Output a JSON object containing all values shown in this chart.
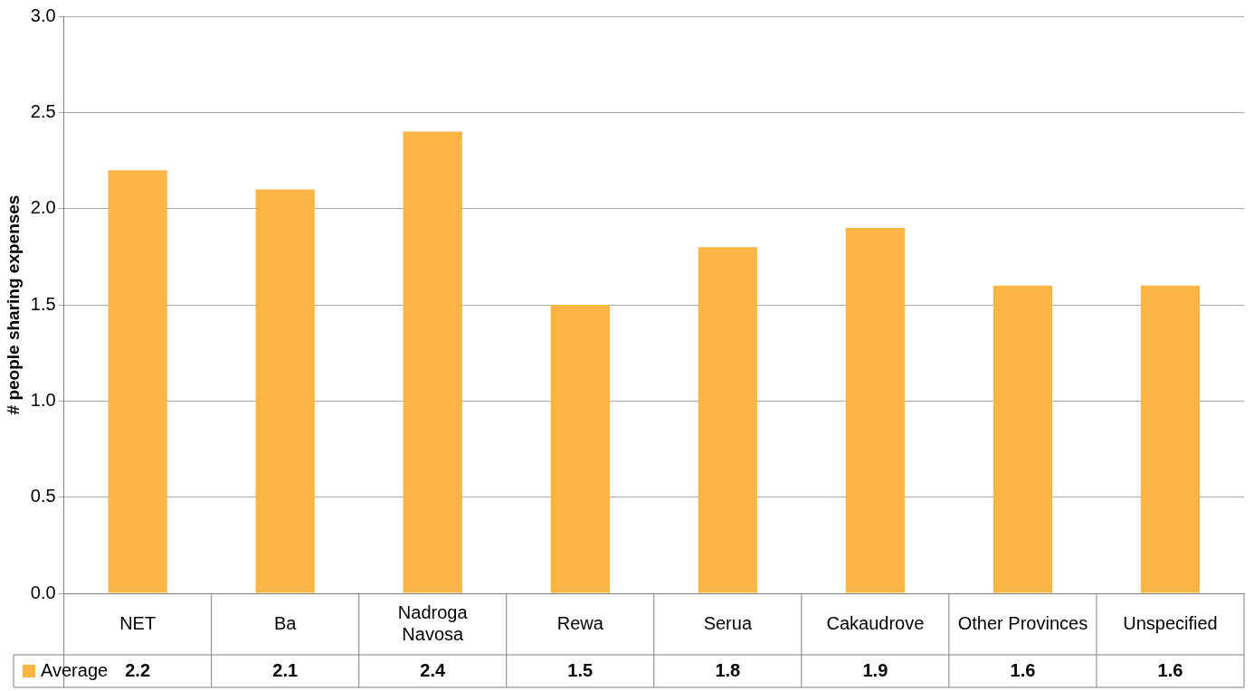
{
  "chart_data": {
    "type": "bar",
    "ylabel": "# people sharing expenses",
    "categories": [
      "NET",
      "Ba",
      "Nadroga Navosa",
      "Rewa",
      "Serua",
      "Cakaudrove",
      "Other Provinces",
      "Unspecified"
    ],
    "series": [
      {
        "name": "Average",
        "color": "#fbb544",
        "values": [
          2.2,
          2.1,
          2.4,
          1.5,
          1.8,
          1.9,
          1.6,
          1.6
        ]
      }
    ],
    "ylim": [
      0,
      3
    ],
    "yticks": [
      {
        "value": 0,
        "label": "0.0"
      },
      {
        "value": 0.5,
        "label": "0.5"
      },
      {
        "value": 1,
        "label": "1.0"
      },
      {
        "value": 1.5,
        "label": "1.5"
      },
      {
        "value": 2,
        "label": "2.0"
      },
      {
        "value": 2.5,
        "label": "2.5"
      },
      {
        "value": 3,
        "label": "3.0"
      }
    ],
    "grid": "y",
    "legend": "bottom left",
    "data_labels": true
  }
}
